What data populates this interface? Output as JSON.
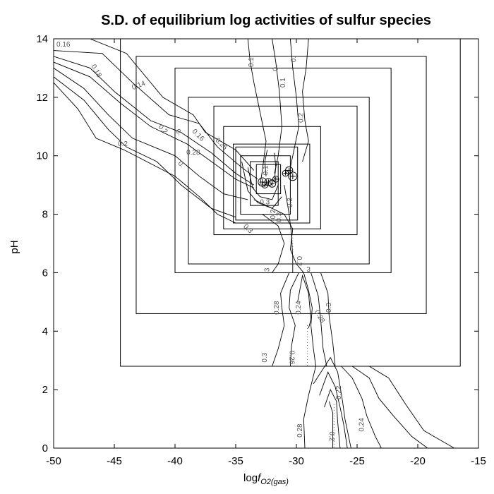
{
  "chart_data": {
    "type": "line",
    "title": "S.D. of equilibrium log activities of sulfur species",
    "xlabel": {
      "prefix": "log",
      "italic": "f",
      "subscript": "O2(gas)"
    },
    "ylabel": "pH",
    "xlim": [
      -50,
      -15
    ],
    "ylim": [
      0,
      14
    ],
    "xticks": [
      -50,
      -45,
      -40,
      -35,
      -30,
      -25,
      -20,
      -15
    ],
    "yticks": [
      0,
      2,
      4,
      6,
      8,
      10,
      12,
      14
    ],
    "grid": false,
    "boxes": [
      {
        "x": [
          -44.5,
          -16.5
        ],
        "y": [
          2.8,
          14
        ]
      },
      {
        "x": [
          -43.2,
          -19.3
        ],
        "y": [
          4.6,
          13.4
        ]
      },
      {
        "x": [
          -40.0,
          -22.2
        ],
        "y": [
          6.0,
          13.0
        ]
      },
      {
        "x": [
          -38.9,
          -24.0
        ],
        "y": [
          6.3,
          12.0
        ]
      },
      {
        "x": [
          -36.8,
          -25.0
        ],
        "y": [
          7.3,
          11.7
        ]
      },
      {
        "x": [
          -36.0,
          -28.0
        ],
        "y": [
          7.5,
          11.0
        ]
      },
      {
        "x": [
          -35.2,
          -28.9
        ],
        "y": [
          7.7,
          10.4
        ]
      },
      {
        "x": [
          -35.0,
          -29.9
        ],
        "y": [
          7.8,
          10.3
        ]
      },
      {
        "x": [
          -34.6,
          -30.5
        ],
        "y": [
          8.0,
          10.0
        ]
      },
      {
        "x": [
          -33.8,
          -31.5
        ],
        "y": [
          8.3,
          9.8
        ]
      },
      {
        "x": [
          -33.3,
          -31.3
        ],
        "y": [
          8.7,
          9.7
        ]
      }
    ],
    "points": [
      {
        "x": -32.8,
        "y": 9.1,
        "r": 0.35
      },
      {
        "x": -32.6,
        "y": 9.0,
        "r": 0.25
      },
      {
        "x": -32.3,
        "y": 9.1,
        "r": 0.3
      },
      {
        "x": -32.0,
        "y": 9.05,
        "r": 0.3
      },
      {
        "x": -31.7,
        "y": 9.2,
        "r": 0.25
      },
      {
        "x": -30.9,
        "y": 9.4,
        "r": 0.25
      },
      {
        "x": -30.6,
        "y": 9.5,
        "r": 0.3
      },
      {
        "x": -30.3,
        "y": 9.3,
        "r": 0.35
      }
    ],
    "contours": [
      {
        "pts": [
          [
            -50,
            14.0
          ],
          [
            -47,
            14.0
          ],
          [
            -44,
            13.5
          ],
          [
            -41,
            12.0
          ],
          [
            -38.5,
            11.4
          ],
          [
            -37.5,
            10.8
          ],
          [
            -35,
            10.2
          ],
          [
            -33.5,
            9.5
          ]
        ]
      },
      {
        "pts": [
          [
            -50,
            13.6
          ],
          [
            -46,
            13.5
          ],
          [
            -43.5,
            12.5
          ],
          [
            -40.5,
            11.4
          ],
          [
            -38,
            11.1
          ],
          [
            -36.5,
            10.3
          ],
          [
            -34.5,
            9.6
          ],
          [
            -33.2,
            9.2
          ]
        ]
      },
      {
        "pts": [
          [
            -50,
            13.4
          ],
          [
            -47,
            13.0
          ],
          [
            -45,
            12.2
          ],
          [
            -42,
            11.2
          ],
          [
            -39.5,
            10.8
          ],
          [
            -37,
            10.1
          ],
          [
            -35,
            9.4
          ],
          [
            -33.5,
            9.0
          ]
        ]
      },
      {
        "pts": [
          [
            -50,
            13.2
          ],
          [
            -47,
            12.7
          ],
          [
            -44.5,
            11.8
          ],
          [
            -42,
            11.0
          ],
          [
            -39,
            10.4
          ],
          [
            -37,
            9.8
          ],
          [
            -35,
            9.2
          ],
          [
            -33.5,
            8.9
          ]
        ]
      },
      {
        "pts": [
          [
            -50,
            13.0
          ],
          [
            -47.5,
            12.3
          ],
          [
            -45.5,
            11.4
          ],
          [
            -43.5,
            10.6
          ],
          [
            -40,
            10.0
          ],
          [
            -38,
            9.3
          ],
          [
            -36,
            8.7
          ],
          [
            -34,
            8.5
          ]
        ]
      },
      {
        "pts": [
          [
            -50,
            12.7
          ],
          [
            -47.5,
            11.9
          ],
          [
            -45.5,
            10.9
          ],
          [
            -44,
            10.3
          ],
          [
            -41.5,
            9.8
          ],
          [
            -39.5,
            9.0
          ],
          [
            -37,
            8.2
          ],
          [
            -35,
            7.9
          ]
        ]
      },
      {
        "pts": [
          [
            -50,
            12.5
          ],
          [
            -48,
            11.6
          ],
          [
            -46.5,
            10.6
          ],
          [
            -44.2,
            10.2
          ],
          [
            -40,
            9.3
          ],
          [
            -38,
            8.6
          ],
          [
            -36.5,
            8.0
          ],
          [
            -35,
            7.7
          ]
        ]
      },
      {
        "pts": [
          [
            -34,
            14.0
          ],
          [
            -33.8,
            13.2
          ],
          [
            -33.5,
            12.5
          ],
          [
            -33,
            11.5
          ],
          [
            -32.5,
            10.5
          ],
          [
            -32.8,
            9.5
          ],
          [
            -33,
            9.0
          ]
        ]
      },
      {
        "pts": [
          [
            -32,
            14.0
          ],
          [
            -31.7,
            13.2
          ],
          [
            -31.4,
            12.2
          ],
          [
            -31.2,
            11.0
          ],
          [
            -31.5,
            10.0
          ],
          [
            -31.8,
            9.4
          ]
        ]
      },
      {
        "pts": [
          [
            -30.5,
            14.0
          ],
          [
            -30.3,
            13.0
          ],
          [
            -30.0,
            12.0
          ],
          [
            -29.8,
            11.0
          ],
          [
            -30.2,
            10.2
          ],
          [
            -30.5,
            9.6
          ]
        ]
      },
      {
        "pts": [
          [
            -29.0,
            14.0
          ],
          [
            -29.2,
            13.0
          ],
          [
            -29.5,
            12.2
          ],
          [
            -29.3,
            11.2
          ],
          [
            -29.0,
            10.5
          ],
          [
            -29.5,
            9.8
          ]
        ]
      },
      {
        "pts": [
          [
            -33.5,
            8.5
          ],
          [
            -32.5,
            8.3
          ],
          [
            -31.0,
            8.0
          ],
          [
            -30.3,
            7.5
          ],
          [
            -30.5,
            6.8
          ],
          [
            -30.0,
            6.3
          ],
          [
            -29.4,
            6.0
          ]
        ]
      },
      {
        "pts": [
          [
            -32.8,
            8.0
          ],
          [
            -31.5,
            7.6
          ],
          [
            -31.0,
            7.0
          ],
          [
            -31.5,
            6.3
          ],
          [
            -32.0,
            6.0
          ]
        ]
      },
      {
        "pts": [
          [
            -31.0,
            9.0
          ],
          [
            -30.6,
            8.0
          ],
          [
            -30.4,
            7.3
          ],
          [
            -30.3,
            6.5
          ],
          [
            -30.3,
            6.0
          ]
        ]
      },
      {
        "pts": [
          [
            -30.6,
            6.0
          ],
          [
            -31.3,
            5.3
          ],
          [
            -31.2,
            4.8
          ],
          [
            -31.0,
            4.2
          ],
          [
            -31.5,
            3.4
          ],
          [
            -32.0,
            2.8
          ]
        ]
      },
      {
        "pts": [
          [
            -29.8,
            6.0
          ],
          [
            -30.5,
            5.4
          ],
          [
            -30.6,
            4.8
          ],
          [
            -30.1,
            4.2
          ],
          [
            -30.4,
            3.5
          ],
          [
            -30.5,
            2.8
          ]
        ]
      },
      {
        "pts": [
          [
            -29.4,
            6.0
          ],
          [
            -29.0,
            5.4
          ],
          [
            -28.7,
            4.8
          ],
          [
            -28.8,
            4.2
          ],
          [
            -28.6,
            3.4
          ],
          [
            -28.4,
            2.8
          ]
        ]
      },
      {
        "pts": [
          [
            -29.9,
            5.0
          ],
          [
            -29.5,
            5.9
          ],
          [
            -29.0,
            5.3
          ],
          [
            -28.8,
            4.4
          ],
          [
            -29.0,
            4.1
          ]
        ]
      },
      {
        "pts": [
          [
            -28.8,
            6.0
          ],
          [
            -28.2,
            5.2
          ],
          [
            -28.0,
            4.4
          ],
          [
            -27.8,
            3.4
          ],
          [
            -27.5,
            2.8
          ]
        ]
      },
      {
        "pts": [
          [
            -28.0,
            6.0
          ],
          [
            -27.4,
            5.3
          ],
          [
            -27.3,
            4.5
          ],
          [
            -27.0,
            3.6
          ],
          [
            -26.8,
            2.8
          ]
        ]
      },
      {
        "pts": [
          [
            -28.4,
            2.8
          ],
          [
            -29.0,
            1.8
          ],
          [
            -29.4,
            1.0
          ],
          [
            -29.3,
            0.0
          ]
        ]
      },
      {
        "pts": [
          [
            -28.6,
            2.2
          ],
          [
            -27.2,
            3.1
          ],
          [
            -26.6,
            2.6
          ],
          [
            -26.2,
            1.6
          ],
          [
            -26.0,
            1.0
          ],
          [
            -25.5,
            0.0
          ]
        ]
      },
      {
        "pts": [
          [
            -28.1,
            1.8
          ],
          [
            -27.4,
            2.6
          ],
          [
            -26.8,
            2.1
          ],
          [
            -26.4,
            1.4
          ],
          [
            -26.1,
            0.8
          ],
          [
            -25.8,
            0.0
          ]
        ]
      },
      {
        "pts": [
          [
            -27.7,
            1.4
          ],
          [
            -27.2,
            2.0
          ],
          [
            -26.7,
            1.6
          ],
          [
            -26.6,
            0.9
          ],
          [
            -26.4,
            0.0
          ]
        ]
      },
      {
        "pts": [
          [
            -27.3,
            1.6
          ],
          [
            -27.0,
            1.2
          ],
          [
            -27.0,
            0.6
          ],
          [
            -27.0,
            0.0
          ]
        ]
      },
      {
        "pts": [
          [
            -26.3,
            2.8
          ],
          [
            -25.4,
            2.4
          ],
          [
            -24.6,
            1.7
          ],
          [
            -24.2,
            1.1
          ],
          [
            -23.5,
            0.4
          ],
          [
            -23.0,
            0.0
          ]
        ]
      },
      {
        "pts": [
          [
            -25.4,
            2.8
          ],
          [
            -24.0,
            2.4
          ],
          [
            -23.2,
            1.7
          ],
          [
            -22.0,
            1.1
          ],
          [
            -20.5,
            0.4
          ],
          [
            -19.2,
            0.0
          ]
        ]
      },
      {
        "pts": [
          [
            -24.0,
            2.8
          ],
          [
            -22.4,
            2.4
          ],
          [
            -21.0,
            1.5
          ],
          [
            -19.5,
            0.6
          ],
          [
            -17.0,
            0.0
          ]
        ]
      },
      {
        "pts": [
          [
            -34.0,
            9.6
          ],
          [
            -33.6,
            8.9
          ],
          [
            -33.0,
            8.6
          ],
          [
            -32.0,
            8.5
          ],
          [
            -31.5,
            9.0
          ]
        ]
      },
      {
        "pts": [
          [
            -34.5,
            9.8
          ],
          [
            -34.0,
            8.8
          ],
          [
            -33.2,
            8.4
          ],
          [
            -32.0,
            8.2
          ],
          [
            -31.2,
            8.6
          ]
        ]
      },
      {
        "pts": [
          [
            -32.4,
            10.2
          ],
          [
            -32.6,
            9.8
          ],
          [
            -32.5,
            9.3
          ]
        ]
      },
      {
        "pts": [
          [
            -31.8,
            10.1
          ],
          [
            -31.7,
            9.6
          ],
          [
            -31.8,
            9.2
          ]
        ]
      }
    ],
    "dotted": [
      {
        "pts": [
          [
            -29.1,
            4.2
          ],
          [
            -29.1,
            2.8
          ]
        ]
      },
      {
        "pts": [
          [
            -30.3,
            7.2
          ],
          [
            -30.3,
            6.6
          ]
        ]
      },
      {
        "pts": [
          [
            -26.9,
            1.5
          ],
          [
            -26.9,
            0.0
          ]
        ]
      }
    ],
    "annotations": [
      {
        "text": "0.16",
        "x": -49.2,
        "y": 13.8,
        "rot": 0
      },
      {
        "text": "0.18",
        "x": -46.5,
        "y": 12.9,
        "rot": 60
      },
      {
        "text": "0.14",
        "x": -43.0,
        "y": 12.4,
        "rot": -20
      },
      {
        "text": "0.2",
        "x": -44.3,
        "y": 10.4,
        "rot": 0
      },
      {
        "text": "0.2",
        "x": -41.0,
        "y": 10.9,
        "rot": 45
      },
      {
        "text": "0.",
        "x": -39.7,
        "y": 10.8,
        "rot": 45
      },
      {
        "text": "0.",
        "x": -39.5,
        "y": 9.7,
        "rot": 45
      },
      {
        "text": "0.16",
        "x": -38.1,
        "y": 10.7,
        "rot": 45
      },
      {
        "text": "0.26",
        "x": -36.2,
        "y": 10.4,
        "rot": 45
      },
      {
        "text": "0.28",
        "x": -38.5,
        "y": 10.1,
        "rot": 0
      },
      {
        "text": "0.1",
        "x": -33.7,
        "y": 13.2,
        "rot": -90
      },
      {
        "text": "0.",
        "x": -31.7,
        "y": 13.0,
        "rot": -90
      },
      {
        "text": "0.",
        "x": -30.2,
        "y": 13.3,
        "rot": -90
      },
      {
        "text": "0.1",
        "x": -31.1,
        "y": 12.5,
        "rot": -90
      },
      {
        "text": "0.2",
        "x": -29.6,
        "y": 11.3,
        "rot": -90
      },
      {
        "text": "0.1",
        "x": -32.5,
        "y": 9.5,
        "rot": -90
      },
      {
        "text": "0.3",
        "x": -32.6,
        "y": 8.4,
        "rot": 0
      },
      {
        "text": "0.3",
        "x": -34.0,
        "y": 7.5,
        "rot": 45
      },
      {
        "text": "0.2",
        "x": -31.9,
        "y": 8.0,
        "rot": -90
      },
      {
        "text": "0.3",
        "x": -31.4,
        "y": 7.9,
        "rot": -90
      },
      {
        "text": "0.3",
        "x": -30.5,
        "y": 8.4,
        "rot": -90
      },
      {
        "text": "0.2",
        "x": -29.8,
        "y": 6.4,
        "rot": 90
      },
      {
        "text": "3",
        "x": -32.4,
        "y": 6.1,
        "rot": -90
      },
      {
        "text": "3",
        "x": -29.0,
        "y": 6.1,
        "rot": 0
      },
      {
        "text": "0.28",
        "x": -31.6,
        "y": 4.8,
        "rot": -90
      },
      {
        "text": "0.24",
        "x": -29.8,
        "y": 4.8,
        "rot": -90
      },
      {
        "text": "0.28",
        "x": -28.1,
        "y": 4.5,
        "rot": 60
      },
      {
        "text": "0.3",
        "x": -27.3,
        "y": 4.8,
        "rot": -90
      },
      {
        "text": "0.3",
        "x": -32.6,
        "y": 3.1,
        "rot": -90
      },
      {
        "text": "0.26",
        "x": -30.4,
        "y": 3.1,
        "rot": 90
      },
      {
        "text": "0.22",
        "x": -26.5,
        "y": 1.9,
        "rot": -90
      },
      {
        "text": "0.24",
        "x": -24.6,
        "y": 0.8,
        "rot": -90
      },
      {
        "text": "0.2",
        "x": -27.1,
        "y": 0.4,
        "rot": 90
      },
      {
        "text": "0.28",
        "x": -29.7,
        "y": 0.6,
        "rot": -90
      }
    ]
  }
}
